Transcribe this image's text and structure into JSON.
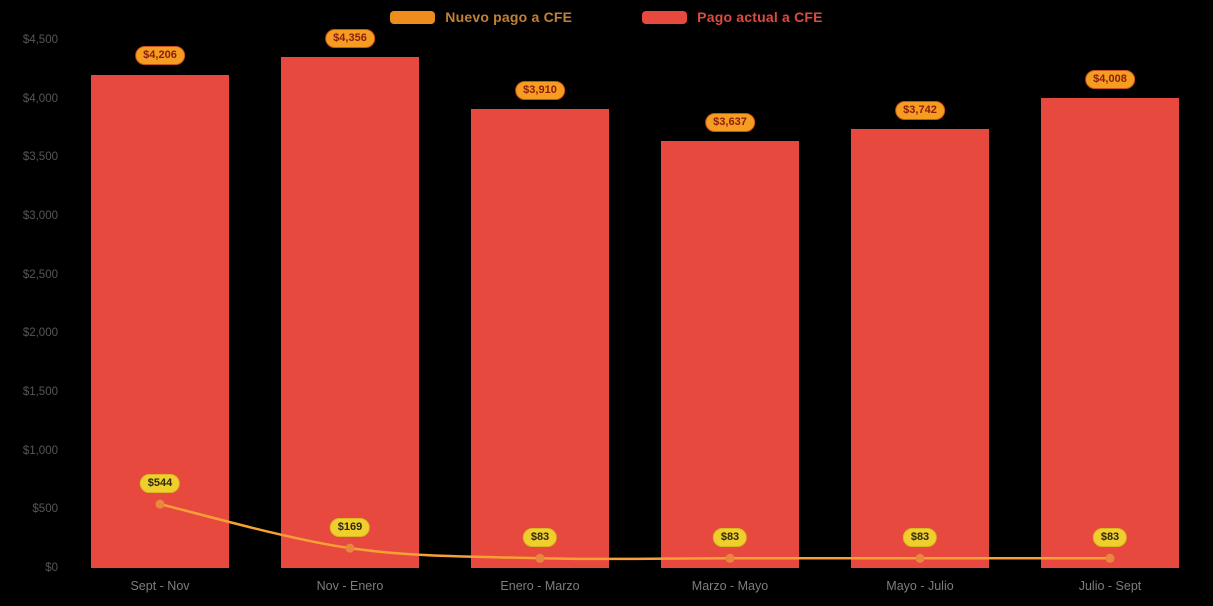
{
  "chart_data": {
    "type": "combo",
    "categories": [
      "Sept - Nov",
      "Nov - Enero",
      "Enero - Marzo",
      "Marzo - Mayo",
      "Mayo - Julio",
      "Julio - Sept"
    ],
    "series": [
      {
        "name": "Nuevo pago a CFE",
        "type": "line",
        "values": [
          544,
          169,
          83,
          83,
          83,
          83
        ],
        "labels": [
          "$544",
          "$169",
          "$83",
          "$83",
          "$83",
          "$83"
        ]
      },
      {
        "name": "Pago actual a CFE",
        "type": "column",
        "values": [
          4206,
          4356,
          3910,
          3637,
          3742,
          4008
        ],
        "labels": [
          "$4,206",
          "$4,356",
          "$3,910",
          "$3,637",
          "$3,742",
          "$4,008"
        ]
      }
    ],
    "title": "",
    "xlabel": "",
    "ylabel": "",
    "ylim": [
      0,
      4500
    ],
    "ytick_step": 500,
    "ytick_labels": [
      "$0",
      "$500",
      "$1,000",
      "$1,500",
      "$2,000",
      "$2,500",
      "$3,000",
      "$3,500",
      "$4,000",
      "$4,500"
    ],
    "grid": false,
    "legend_position": "top"
  },
  "colors": {
    "background": "#000000",
    "bar_fill": "#e8493f",
    "line_stroke": "#f7a035",
    "marker_fill": "#e8883e",
    "bar_label_bg": "#f59d21",
    "bar_label_border": "#c9531b",
    "bar_label_text": "#8e1c10",
    "line_label_bg": "#f0cf2d",
    "line_label_border": "#d9b91f",
    "line_label_text": "#2e2a0e",
    "ytick_text": "#565656",
    "xtick_text": "#7d7d7d",
    "legend_nuevo_swatch": "#ef8c1e",
    "legend_nuevo_text": "#c08136",
    "legend_actual_swatch": "#e8493f",
    "legend_actual_text": "#dd4b40"
  }
}
